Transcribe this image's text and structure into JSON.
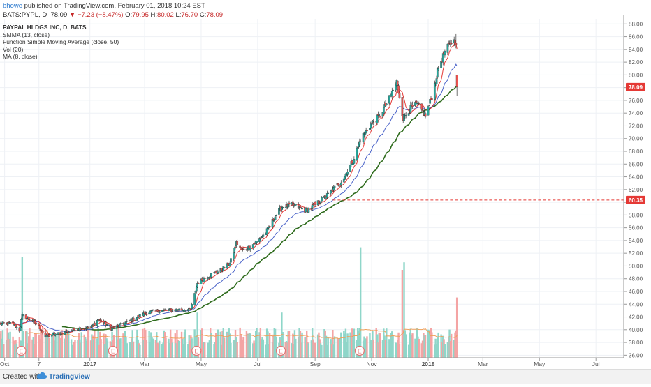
{
  "header": {
    "user": "bhowe",
    "published": "published on TradingView.com, February 01, 2018 10:24 EST",
    "symbol": "BATS:PYPL, D",
    "last": "78.09",
    "change_arrow": "▼",
    "change": "−7.23 (−8.47%)",
    "o_label": "O:",
    "o": "79.95",
    "h_label": "H:",
    "h": "80.02",
    "l_label": "L:",
    "l": "76.70",
    "c_label": "C:",
    "c": "78.09"
  },
  "legend": {
    "title": "PAYPAL HLDGS INC, D, BATS",
    "items": [
      "SMMA (13, close)",
      "Function Simple Moving Average (close, 50)",
      "Vol (20)",
      "MA (8, close)"
    ]
  },
  "footer": {
    "created": "Created with",
    "brand": "TradingView"
  },
  "colors": {
    "up": "#26a69a",
    "down": "#ef5350",
    "vol_up": "#8fd6c9",
    "vol_down": "#f4a4a4",
    "ma8": "#e53935",
    "smma13": "#4a63c9",
    "sma50": "#2e6b1c",
    "vol_ma": "#f0a05a",
    "grid": "#eef1f5",
    "axis": "#555555",
    "level": "#e53935"
  },
  "chart_data": {
    "type": "candlestick",
    "title": "PAYPAL HLDGS INC, D, BATS",
    "ylim": [
      35.6,
      88.8
    ],
    "yticks": [
      36,
      38,
      40,
      42,
      44,
      46,
      48,
      50,
      52,
      54,
      56,
      58,
      60,
      62,
      64,
      66,
      68,
      70,
      72,
      74,
      76,
      78,
      80,
      82,
      84,
      86,
      88
    ],
    "xlim": [
      "2016-09-26",
      "2018-07-31"
    ],
    "xticks": [
      {
        "date": "2016-10-01",
        "label": "Oct",
        "bold": false
      },
      {
        "date": "2016-11-07",
        "label": "7",
        "bold": false
      },
      {
        "date": "2017-01-01",
        "label": "2017",
        "bold": true
      },
      {
        "date": "2017-03-01",
        "label": "Mar",
        "bold": false
      },
      {
        "date": "2017-05-01",
        "label": "May",
        "bold": false
      },
      {
        "date": "2017-07-01",
        "label": "Jul",
        "bold": false
      },
      {
        "date": "2017-09-01",
        "label": "Sep",
        "bold": false
      },
      {
        "date": "2017-11-01",
        "label": "Nov",
        "bold": false
      },
      {
        "date": "2018-01-01",
        "label": "2018",
        "bold": true
      },
      {
        "date": "2018-03-01",
        "label": "Mar",
        "bold": false
      },
      {
        "date": "2018-05-01",
        "label": "May",
        "bold": false
      },
      {
        "date": "2018-07-01",
        "label": "Jul",
        "bold": false
      }
    ],
    "last_price_label": "78.09",
    "level_label": "60.35",
    "level": 60.35,
    "earnings_label": "E",
    "earnings_dates": [
      "2016-10-19",
      "2017-01-26",
      "2017-04-26",
      "2017-07-26",
      "2017-10-19"
    ],
    "close_path": [
      [
        "2016-09-26",
        40.9
      ],
      [
        "2016-10-10",
        41.0
      ],
      [
        "2016-10-17",
        39.9
      ],
      [
        "2016-10-20",
        42.2
      ],
      [
        "2016-10-31",
        41.4
      ],
      [
        "2016-11-07",
        40.5
      ],
      [
        "2016-11-14",
        38.9
      ],
      [
        "2016-11-21",
        39.2
      ],
      [
        "2016-12-05",
        39.6
      ],
      [
        "2016-12-19",
        40.2
      ],
      [
        "2017-01-02",
        40.4
      ],
      [
        "2017-01-10",
        41.6
      ],
      [
        "2017-01-24",
        40.2
      ],
      [
        "2017-02-01",
        40.6
      ],
      [
        "2017-02-15",
        41.5
      ],
      [
        "2017-03-01",
        42.6
      ],
      [
        "2017-03-15",
        43.0
      ],
      [
        "2017-04-01",
        43.1
      ],
      [
        "2017-04-20",
        43.2
      ],
      [
        "2017-04-27",
        47.3
      ],
      [
        "2017-05-08",
        48.4
      ],
      [
        "2017-05-22",
        49.3
      ],
      [
        "2017-06-01",
        50.4
      ],
      [
        "2017-06-08",
        53.6
      ],
      [
        "2017-06-15",
        52.4
      ],
      [
        "2017-06-22",
        53.0
      ],
      [
        "2017-07-01",
        53.9
      ],
      [
        "2017-07-10",
        55.3
      ],
      [
        "2017-07-20",
        57.8
      ],
      [
        "2017-07-27",
        59.3
      ],
      [
        "2017-08-08",
        59.6
      ],
      [
        "2017-08-22",
        58.7
      ],
      [
        "2017-09-01",
        59.6
      ],
      [
        "2017-09-15",
        61.2
      ],
      [
        "2017-10-01",
        63.6
      ],
      [
        "2017-10-12",
        66.6
      ],
      [
        "2017-10-20",
        69.9
      ],
      [
        "2017-11-01",
        72.4
      ],
      [
        "2017-11-10",
        73.6
      ],
      [
        "2017-11-20",
        76.3
      ],
      [
        "2017-11-28",
        78.9
      ],
      [
        "2017-12-01",
        76.6
      ],
      [
        "2017-12-05",
        73.2
      ],
      [
        "2017-12-12",
        74.7
      ],
      [
        "2017-12-20",
        75.4
      ],
      [
        "2017-12-29",
        73.6
      ],
      [
        "2018-01-05",
        76.6
      ],
      [
        "2018-01-12",
        81.1
      ],
      [
        "2018-01-19",
        83.6
      ],
      [
        "2018-01-26",
        85.2
      ],
      [
        "2018-01-31",
        85.32
      ],
      [
        "2018-02-01",
        78.09
      ]
    ],
    "volume_ylim": [
      0,
      50000000
    ],
    "volume_spikes": [
      {
        "date": "2016-10-20",
        "volume": 40000000
      },
      {
        "date": "2017-04-27",
        "volume": 18000000
      },
      {
        "date": "2017-07-27",
        "volume": 18000000
      },
      {
        "date": "2017-10-20",
        "volume": 44000000
      },
      {
        "date": "2017-12-04",
        "volume": 35000000
      },
      {
        "date": "2017-12-06",
        "volume": 38000000
      },
      {
        "date": "2018-02-01",
        "volume": 24000000
      }
    ],
    "series": [
      {
        "name": "MA (8, close)",
        "kind": "line"
      },
      {
        "name": "SMMA (13, close)",
        "kind": "line"
      },
      {
        "name": "Function Simple Moving Average (close, 50)",
        "kind": "line"
      },
      {
        "name": "Vol (20)",
        "kind": "histogram"
      }
    ]
  }
}
